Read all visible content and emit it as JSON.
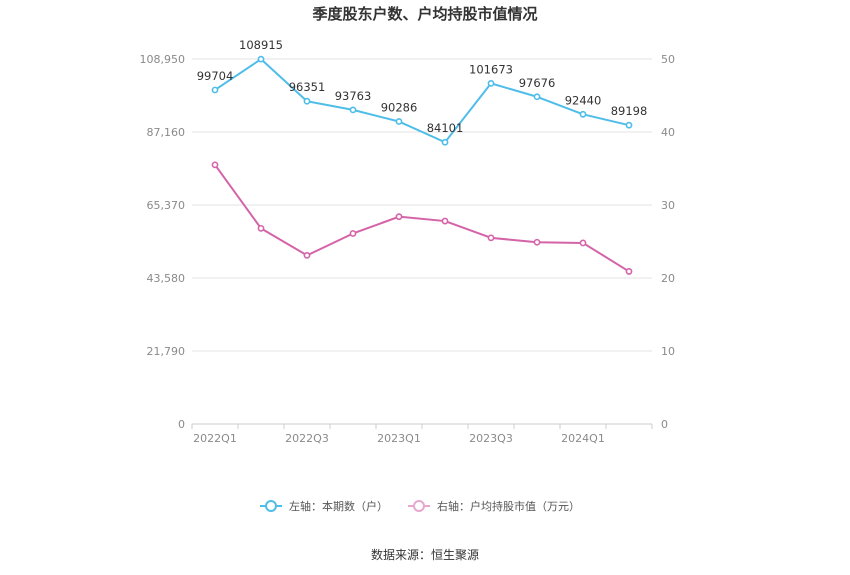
{
  "chart_data": {
    "type": "line",
    "title": "季度股东户数、户均持股市值情况",
    "categories": [
      "2022Q1",
      "2022Q2",
      "2022Q3",
      "2022Q4",
      "2023Q1",
      "2023Q2",
      "2023Q3",
      "2023Q4",
      "2024Q1",
      "2024Q2"
    ],
    "x_tick_labels": [
      "2022Q1",
      "2022Q3",
      "2023Q1",
      "2023Q3",
      "2024Q1"
    ],
    "y_left": {
      "range": [
        0,
        108950
      ],
      "ticks": [
        "0",
        "21,790",
        "43,580",
        "65,370",
        "87,160",
        "108,950"
      ]
    },
    "y_right": {
      "range": [
        0,
        50
      ],
      "ticks": [
        "0",
        "10",
        "20",
        "30",
        "40",
        "50"
      ]
    },
    "series": [
      {
        "name": "左轴：本期数（户）",
        "axis": "left",
        "color": "#4fbde9",
        "values": [
          99704,
          108915,
          96351,
          93763,
          90286,
          84101,
          101673,
          97676,
          92440,
          89198
        ],
        "labels": [
          "99704",
          "108915",
          "96351",
          "93763",
          "90286",
          "84101",
          "101673",
          "97676",
          "92440",
          "89198"
        ]
      },
      {
        "name": "右轴：户均持股市值（万元）",
        "axis": "right",
        "color": "#d463a8",
        "values": [
          35.5,
          26.8,
          23.1,
          26.1,
          28.4,
          27.8,
          25.5,
          24.9,
          24.8,
          20.9
        ]
      }
    ],
    "grid": true,
    "legend_position": "bottom"
  },
  "source": "数据来源：恒生聚源"
}
